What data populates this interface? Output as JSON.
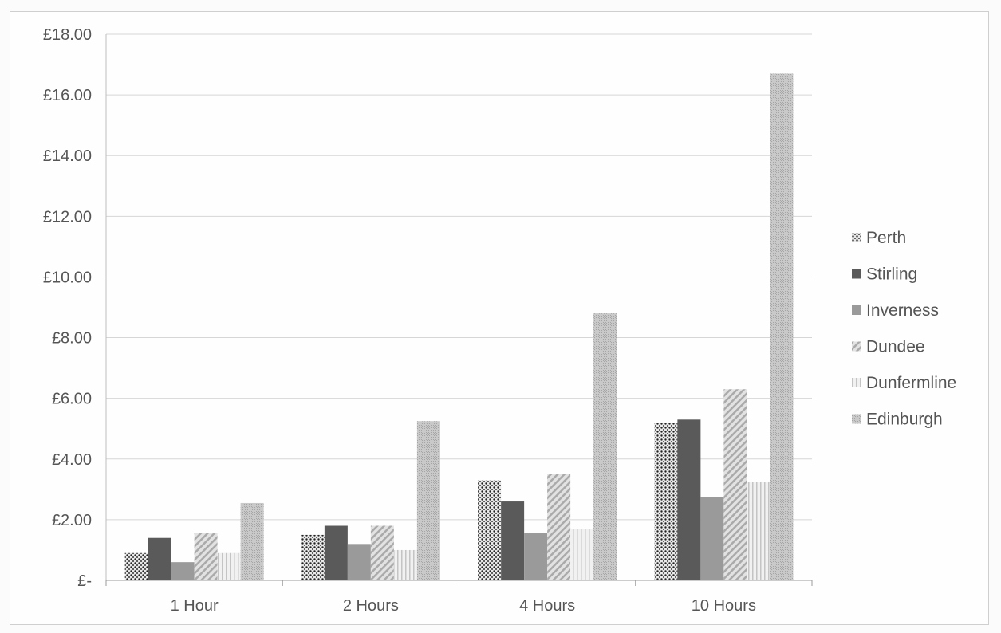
{
  "chart_data": {
    "type": "bar",
    "title": "",
    "xlabel": "",
    "ylabel": "",
    "categories": [
      "1 Hour",
      "2 Hours",
      "4 Hours",
      "10 Hours"
    ],
    "ylim": [
      0,
      18
    ],
    "yticks": [
      "£-",
      "£2.00",
      "£4.00",
      "£6.00",
      "£8.00",
      "£10.00",
      "£12.00",
      "£14.00",
      "£16.00",
      "£18.00"
    ],
    "grid": true,
    "legend_position": "right",
    "series": [
      {
        "name": "Perth",
        "values": [
          0.9,
          1.5,
          3.3,
          5.2
        ],
        "color": "#3a3a3a",
        "pattern": "dots"
      },
      {
        "name": "Stirling",
        "values": [
          1.4,
          1.8,
          2.6,
          5.3
        ],
        "color": "#5a5a5a",
        "pattern": "solid"
      },
      {
        "name": "Inverness",
        "values": [
          0.6,
          1.2,
          1.55,
          2.75
        ],
        "color": "#9a9a9a",
        "pattern": "solid"
      },
      {
        "name": "Dundee",
        "values": [
          1.55,
          1.8,
          3.5,
          6.3
        ],
        "color": "#b8b8b8",
        "pattern": "diagonal"
      },
      {
        "name": "Dunfermline",
        "values": [
          0.9,
          1.0,
          1.7,
          3.25
        ],
        "color": "#d0d0d0",
        "pattern": "vertical"
      },
      {
        "name": "Edinburgh",
        "values": [
          2.55,
          5.25,
          8.8,
          16.7
        ],
        "color": "#b5b5b5",
        "pattern": "fine"
      }
    ]
  }
}
